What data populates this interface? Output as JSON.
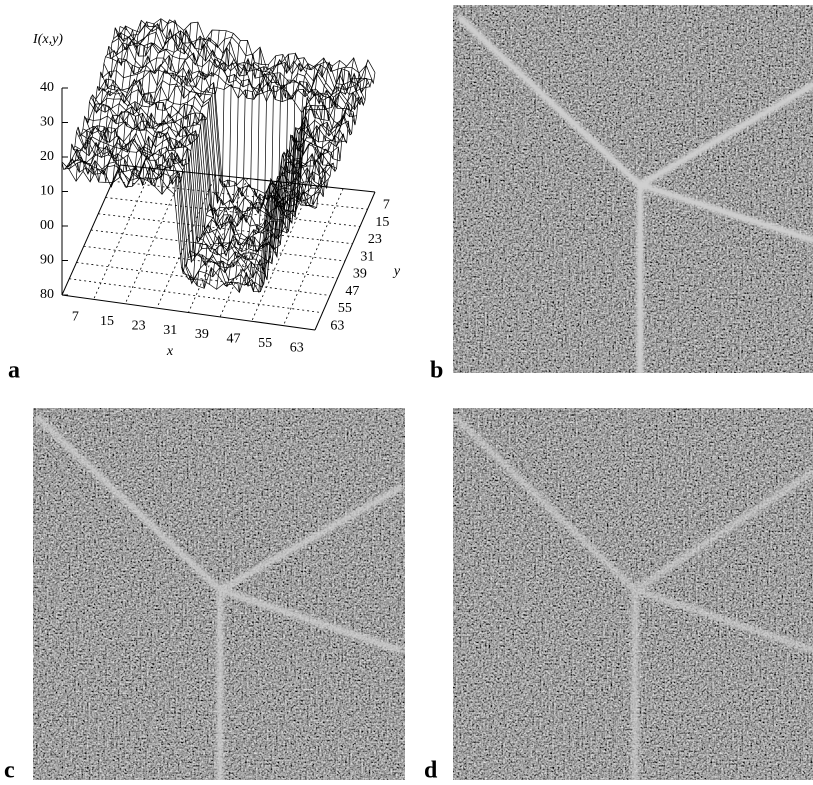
{
  "panels": [
    {
      "label": "a"
    },
    {
      "label": "b"
    },
    {
      "label": "c"
    },
    {
      "label": "d"
    }
  ],
  "plot": {
    "z_label": "I(x,y)",
    "x_label": "x",
    "y_label": "y",
    "z_ticks": [
      "40",
      "30",
      "20",
      "10",
      "00",
      "90",
      "80"
    ],
    "x_ticks": [
      "7",
      "15",
      "23",
      "31",
      "39",
      "47",
      "55",
      "63"
    ],
    "y_ticks": [
      "7",
      "15",
      "23",
      "31",
      "39",
      "47",
      "55",
      "63"
    ]
  }
}
